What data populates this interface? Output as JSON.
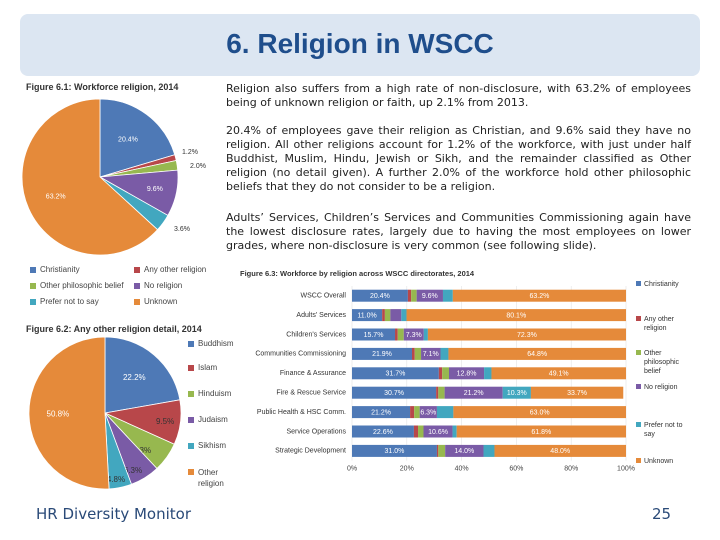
{
  "slide": {
    "title": "6. Religion in WSCC",
    "paragraphs": [
      "Religion also suffers from a high rate of non-disclosure, with 63.2% of employees being of unknown religion or faith, up 2.1% from 2013.",
      "20.4% of employees gave their religion as Christian, and 9.6% said they have no religion. All other religions account for 1.2% of the workforce, with just under half Buddhist, Muslim, Hindu, Jewish or Sikh, and the remainder classified as Other religion (no detail given). A further 2.0% of the workforce hold other philosophic beliefs that they do not consider to be a religion.",
      "Adults’ Services, Children’s Services and Communities Commissioning again have the lowest disclosure rates, largely due to having the most employees on lower grades, where non-disclosure is very common (see following slide)."
    ],
    "footer_left": "HR Diversity Monitor",
    "page_number": "25"
  },
  "colors": {
    "christianity": "#4e79b6",
    "any_other_religion": "#b8474a",
    "other_philosophic_belief": "#97b84f",
    "no_religion": "#7a5ba6",
    "prefer_not_to_say": "#42a7bf",
    "unknown": "#e58a3a",
    "header_bg": "#dce6f2",
    "title": "#1f4e8c"
  },
  "chart_data": [
    {
      "type": "pie",
      "title": "Figure 6.1: Workforce religion, 2014",
      "slices": [
        {
          "name": "Christianity",
          "value": 20.4,
          "label": "20.4%",
          "color": "#4e79b6"
        },
        {
          "name": "Any other religion",
          "value": 1.2,
          "label": "1.2%",
          "color": "#b8474a"
        },
        {
          "name": "Other philosophic belief",
          "value": 2.0,
          "label": "2.0%",
          "color": "#97b84f"
        },
        {
          "name": "No religion",
          "value": 9.6,
          "label": "9.6%",
          "color": "#7a5ba6"
        },
        {
          "name": "Prefer not to say",
          "value": 3.6,
          "label": "3.6%",
          "color": "#42a7bf"
        },
        {
          "name": "Unknown",
          "value": 63.2,
          "label": "63.2%",
          "color": "#e58a3a"
        }
      ],
      "legend_position": "bottom"
    },
    {
      "type": "pie",
      "title": "Figure 6.2: Any other religion detail, 2014",
      "slices": [
        {
          "name": "Buddhism",
          "value": 22.2,
          "label": "22.2%",
          "color": "#4e79b6"
        },
        {
          "name": "Islam",
          "value": 9.5,
          "label": "9.5%",
          "color": "#b8474a"
        },
        {
          "name": "Hinduism",
          "value": 6.3,
          "label": "6.3%",
          "color": "#97b84f"
        },
        {
          "name": "Judaism",
          "value": 6.3,
          "label": "6.3%",
          "color": "#7a5ba6"
        },
        {
          "name": "Sikhism",
          "value": 4.8,
          "label": "4.8%",
          "color": "#42a7bf"
        },
        {
          "name": "Other religion",
          "value": 50.8,
          "label": "50.8%",
          "color": "#e58a3a"
        }
      ],
      "legend_position": "right"
    },
    {
      "type": "bar",
      "orientation": "horizontal",
      "stacked": true,
      "title": "Figure 6.3: Workforce by religion across WSCC directorates, 2014",
      "categories": [
        "WSCC Overall",
        "Adults' Services",
        "Children's Services",
        "Communities Commissioning",
        "Finance & Assurance",
        "Fire & Rescue Service",
        "Public Health & HSC Comm.",
        "Service Operations",
        "Strategic Development"
      ],
      "series": [
        {
          "name": "Christianity",
          "color": "#4e79b6",
          "values": [
            20.4,
            11.0,
            15.7,
            21.9,
            31.7,
            30.7,
            21.2,
            22.6,
            31.0
          ],
          "labels": [
            "20.4%",
            "11.0%",
            "15.7%",
            "21.9%",
            "31.7%",
            "30.7%",
            "21.2%",
            "22.6%",
            "31.0%"
          ]
        },
        {
          "name": "Any other religion",
          "color": "#b8474a",
          "values": [
            1.2,
            1.0,
            1.0,
            1.0,
            1.2,
            0.8,
            1.5,
            1.5,
            0.5
          ],
          "labels": [
            "",
            "",
            "",
            "",
            "",
            "",
            "",
            "",
            ""
          ]
        },
        {
          "name": "Other philosophic belief",
          "color": "#97b84f",
          "values": [
            2.0,
            2.0,
            2.2,
            2.3,
            2.5,
            2.3,
            2.0,
            2.0,
            2.5
          ],
          "labels": [
            "",
            "",
            "",
            "",
            "",
            "",
            "",
            "",
            ""
          ]
        },
        {
          "name": "No religion",
          "color": "#7a5ba6",
          "values": [
            9.6,
            4.0,
            7.3,
            7.1,
            12.8,
            21.2,
            6.3,
            10.6,
            14.0
          ],
          "labels": [
            "9.6%",
            "",
            "7.3%",
            "7.1%",
            "12.8%",
            "21.2%",
            "6.3%",
            "10.6%",
            "14.0%"
          ]
        },
        {
          "name": "Prefer not to say",
          "color": "#42a7bf",
          "values": [
            3.6,
            1.9,
            1.5,
            2.9,
            2.7,
            10.3,
            6.0,
            1.5,
            4.0
          ],
          "labels": [
            "",
            "",
            "",
            "",
            "",
            "10.3%",
            "",
            "",
            ""
          ]
        },
        {
          "name": "Unknown",
          "color": "#e58a3a",
          "values": [
            63.2,
            80.1,
            72.3,
            64.8,
            49.1,
            33.7,
            63.0,
            61.8,
            48.0
          ],
          "labels": [
            "63.2%",
            "80.1%",
            "72.3%",
            "64.8%",
            "49.1%",
            "33.7%",
            "63.0%",
            "61.8%",
            "48.0%"
          ]
        }
      ],
      "x_ticks": [
        "0%",
        "20%",
        "40%",
        "60%",
        "80%",
        "100%"
      ],
      "xlim": [
        0,
        100
      ],
      "legend_position": "right",
      "legend_labels": [
        [
          "Christianity"
        ],
        [
          "Any other",
          "religion"
        ],
        [
          "Other",
          "philosophic",
          "belief"
        ],
        [
          "No religion"
        ],
        [
          "Prefer not to",
          "say"
        ],
        [
          "Unknown"
        ]
      ]
    }
  ],
  "legend1": [
    {
      "name": "Christianity",
      "color": "#4e79b6"
    },
    {
      "name": "Any other religion",
      "color": "#b8474a"
    },
    {
      "name": "Other philosophic belief",
      "color": "#97b84f"
    },
    {
      "name": "No religion",
      "color": "#7a5ba6"
    },
    {
      "name": "Prefer not to say",
      "color": "#42a7bf"
    },
    {
      "name": "Unknown",
      "color": "#e58a3a"
    }
  ],
  "legend2": [
    {
      "name": "Buddhism",
      "color": "#4e79b6"
    },
    {
      "name": "Islam",
      "color": "#b8474a"
    },
    {
      "name": "Hinduism",
      "color": "#97b84f"
    },
    {
      "name": "Judaism",
      "color": "#7a5ba6"
    },
    {
      "name": "Sikhism",
      "color": "#42a7bf"
    },
    {
      "name": "Other religion",
      "color": "#e58a3a"
    }
  ]
}
